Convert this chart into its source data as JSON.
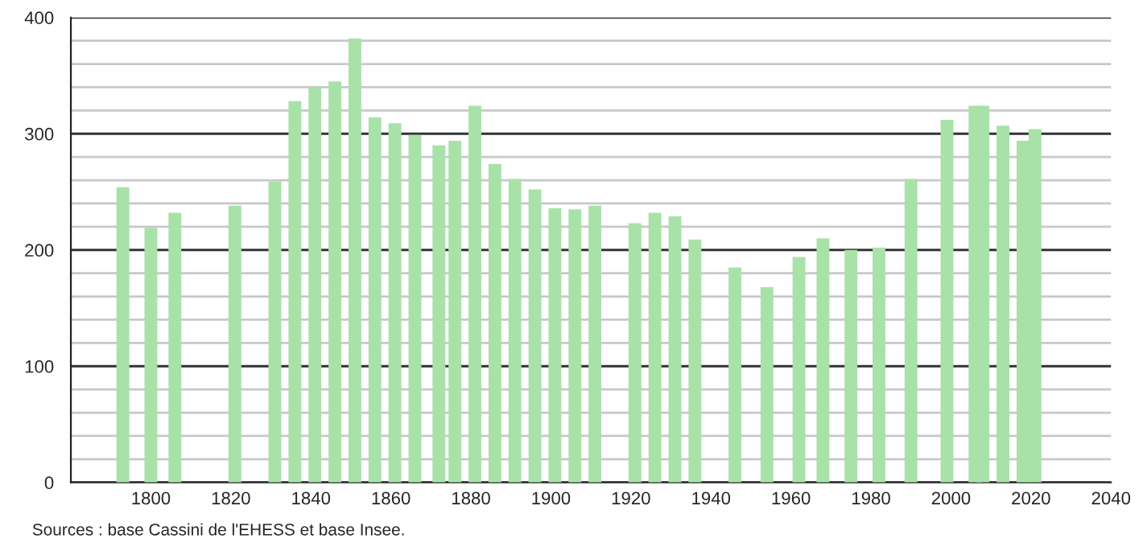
{
  "chart_data": {
    "type": "bar",
    "x": [
      1793,
      1800,
      1806,
      1821,
      1831,
      1836,
      1841,
      1846,
      1851,
      1856,
      1861,
      1866,
      1872,
      1876,
      1881,
      1886,
      1891,
      1896,
      1901,
      1906,
      1911,
      1921,
      1926,
      1931,
      1936,
      1946,
      1954,
      1962,
      1968,
      1975,
      1982,
      1990,
      1999,
      2006,
      2008,
      2013,
      2018,
      2021
    ],
    "values": [
      254,
      219,
      232,
      238,
      259,
      328,
      340,
      345,
      382,
      314,
      309,
      299,
      290,
      294,
      324,
      274,
      261,
      252,
      236,
      235,
      238,
      223,
      232,
      229,
      209,
      185,
      168,
      194,
      210,
      200,
      202,
      261,
      312,
      324,
      324,
      307,
      294,
      304
    ],
    "color": "#a8e2a8",
    "xlim": [
      1780,
      2040
    ],
    "xticks": [
      1800,
      1820,
      1840,
      1860,
      1880,
      1900,
      1920,
      1940,
      1960,
      1980,
      2000,
      2020,
      2040
    ],
    "ylim": [
      0,
      400
    ],
    "yticks": [
      0,
      {
        "value": 20,
        "label": null
      },
      {
        "value": 40,
        "label": null
      },
      {
        "value": 60,
        "label": null
      },
      {
        "value": 80,
        "label": null
      },
      100,
      {
        "value": 120,
        "label": null
      },
      {
        "value": 140,
        "label": null
      },
      {
        "value": 160,
        "label": null
      },
      {
        "value": 180,
        "label": null
      },
      200,
      {
        "value": 220,
        "label": null
      },
      {
        "value": 240,
        "label": null
      },
      {
        "value": 260,
        "label": null
      },
      {
        "value": 280,
        "label": null
      },
      300,
      {
        "value": 320,
        "label": null
      },
      {
        "value": 340,
        "label": null
      },
      {
        "value": 360,
        "label": null
      },
      {
        "value": 380,
        "label": null
      },
      400
    ],
    "grid": "y",
    "annotations": [
      "Sources : base Cassini de l'EHESS et base Insee."
    ]
  }
}
